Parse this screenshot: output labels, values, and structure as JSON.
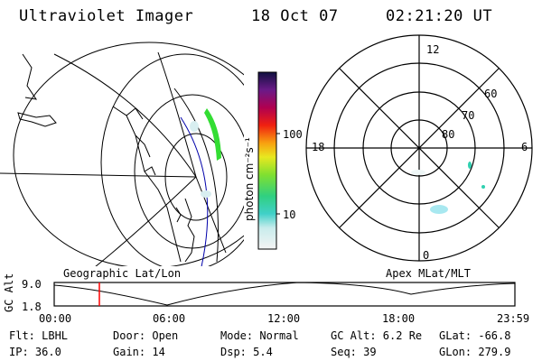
{
  "header": {
    "title": "Ultraviolet Imager",
    "date": "18 Oct 07",
    "time": "02:21:20 UT"
  },
  "colorbar": {
    "unit": "photon cm⁻²s⁻¹",
    "ticks": [
      "100",
      "10"
    ]
  },
  "left_map": {
    "label": "Geographic Lat/Lon"
  },
  "polar_plot": {
    "label": "Apex MLat/MLT",
    "mlt_labels": [
      "12",
      "18",
      "6",
      "0"
    ],
    "lat_labels": [
      "60",
      "70",
      "80"
    ]
  },
  "altitude_plot": {
    "ylabel": "GC Alt",
    "ytick_top": "9.0",
    "ytick_bottom": "1.8",
    "xticks": [
      "00:00",
      "06:00",
      "12:00",
      "18:00",
      "23:59"
    ]
  },
  "info": {
    "row1": {
      "flt": "Flt: LBHL",
      "door": "Door: Open",
      "mode": "Mode: Normal",
      "gcalt": "GC Alt: 6.2 Re",
      "glat": "GLat: -66.8"
    },
    "row2": {
      "ip": "IP: 36.0",
      "gain": "Gain: 14",
      "dsp": "Dsp:    5.4",
      "seq": "Seq: 39",
      "glon": "GLon: 279.9"
    }
  },
  "colors": {
    "marker": "#ff0000",
    "aurora": "#33dd33",
    "trace": "#0000aa"
  }
}
